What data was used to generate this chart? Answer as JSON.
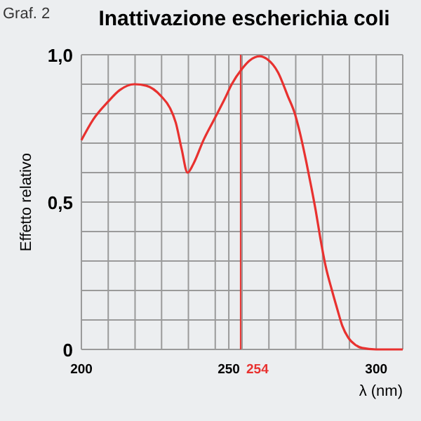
{
  "chart_data": {
    "type": "line",
    "title": "Inattivazione escherichia coli",
    "xlabel": "λ (nm)",
    "ylabel": "Effetto relativo",
    "annotations": [
      "Graf. 2"
    ],
    "x": [
      200,
      204,
      209,
      213,
      218,
      222,
      227,
      230,
      232,
      234,
      236,
      238,
      241.4,
      245,
      248.6,
      251,
      254.3,
      257,
      260.5,
      263,
      266.7,
      270,
      272.4,
      274,
      276.2,
      278,
      279.5,
      281,
      282.9,
      285,
      286.7,
      288.5,
      290.5,
      293,
      295.2,
      300,
      309
    ],
    "series": [
      {
        "color": "#e8312f",
        "values": [
          0.71,
          0.78,
          0.84,
          0.88,
          0.9,
          0.895,
          0.86,
          0.82,
          0.77,
          0.68,
          0.6,
          0.63,
          0.71,
          0.78,
          0.85,
          0.9,
          0.95,
          0.98,
          0.995,
          0.985,
          0.94,
          0.86,
          0.8,
          0.74,
          0.64,
          0.55,
          0.47,
          0.38,
          0.28,
          0.2,
          0.14,
          0.08,
          0.04,
          0.015,
          0.005,
          0,
          0
        ]
      }
    ],
    "xlim": [
      200,
      309
    ],
    "ylim": [
      0,
      1
    ],
    "xticks": [
      200,
      {
        "value": 209.1,
        "label": null
      },
      {
        "value": 218.2,
        "label": null
      },
      {
        "value": 227.2,
        "label": null
      },
      {
        "value": 236.3,
        "label": null
      },
      {
        "value": 245.4,
        "label": null
      },
      250,
      {
        "value": 254.5,
        "label": null
      },
      {
        "value": 263.6,
        "label": null
      },
      {
        "value": 272.7,
        "label": null
      },
      {
        "value": 281.8,
        "label": null
      },
      {
        "value": 290.9,
        "label": null
      },
      300,
      {
        "value": 309,
        "label": null
      }
    ],
    "yticks": [
      {
        "value": 0,
        "label": "0"
      },
      {
        "value": 0.1,
        "label": null
      },
      {
        "value": 0.2,
        "label": null
      },
      {
        "value": 0.3,
        "label": null
      },
      {
        "value": 0.4,
        "label": null
      },
      {
        "value": 0.5,
        "label": "0,5"
      },
      {
        "value": 0.6,
        "label": null
      },
      {
        "value": 0.7,
        "label": null
      },
      {
        "value": 0.8,
        "label": null
      },
      {
        "value": 0.9,
        "label": null
      },
      {
        "value": 1,
        "label": "1,0"
      }
    ],
    "grid": true,
    "marker": "none",
    "line_style": "solid",
    "ref_lines": [
      {
        "axis": "x",
        "value": 254,
        "label": "254",
        "color": "#e8312f"
      }
    ]
  }
}
